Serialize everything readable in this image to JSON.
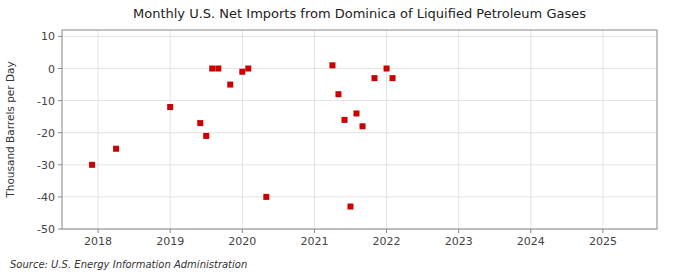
{
  "chart_data": {
    "type": "scatter",
    "title": "Monthly U.S. Net Imports from Dominica of Liquified Petroleum Gases",
    "ylabel": "Thousand Barrels per Day",
    "source": "Source: U.S. Energy Information Administration",
    "color": "#cc0000",
    "marker": "square",
    "grid": true,
    "xlim": [
      2017.5,
      2025.75
    ],
    "ylim": [
      -50,
      12
    ],
    "xticks": [
      2018,
      2019,
      2020,
      2021,
      2022,
      2023,
      2024,
      2025
    ],
    "yticks": [
      -50,
      -40,
      -30,
      -20,
      -10,
      0,
      10
    ],
    "x": [
      2017.917,
      2018.25,
      2019.0,
      2019.417,
      2019.5,
      2019.583,
      2019.667,
      2019.833,
      2020.0,
      2020.083,
      2020.333,
      2021.25,
      2021.333,
      2021.417,
      2021.5,
      2021.583,
      2021.667,
      2021.833,
      2022.0,
      2022.083
    ],
    "values": [
      -30,
      -25,
      -12,
      -17,
      -21,
      0,
      0,
      -5,
      -1,
      0,
      -40,
      1,
      -8,
      -16,
      -43,
      -14,
      -18,
      -3,
      0,
      -3
    ]
  }
}
